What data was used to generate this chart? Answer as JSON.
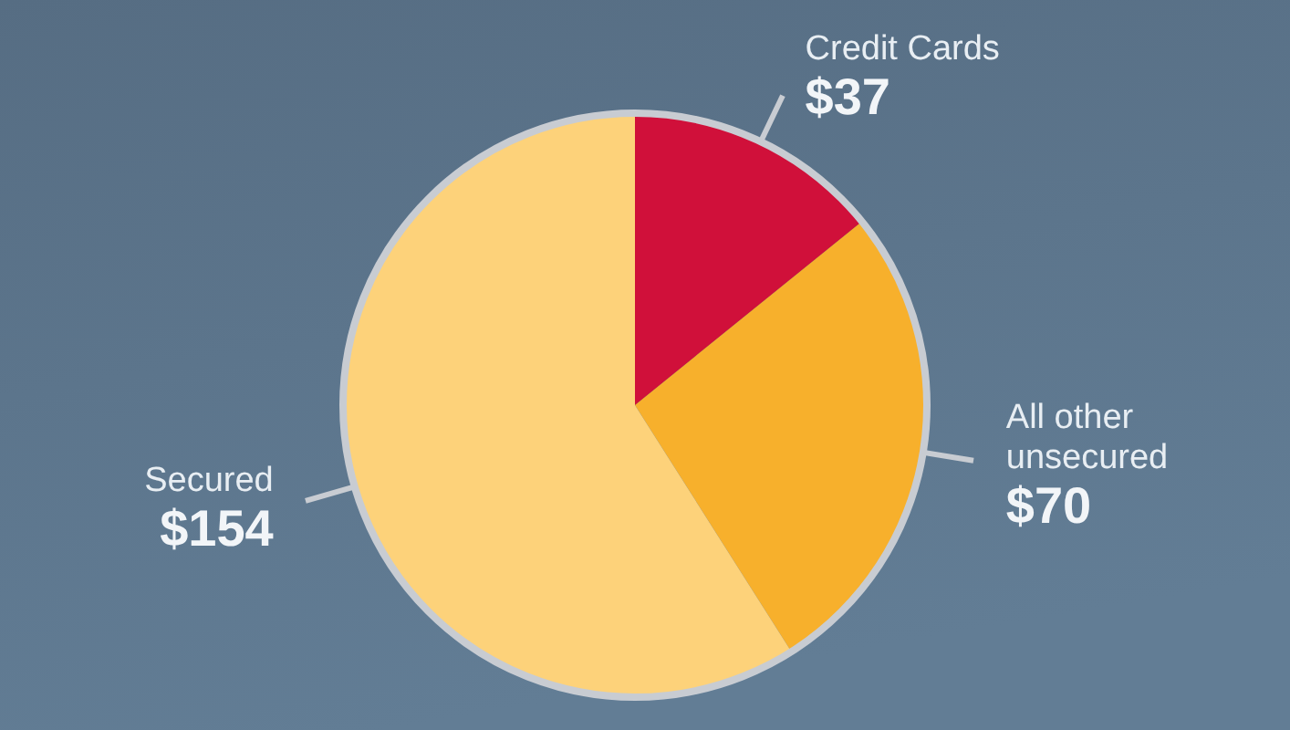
{
  "chart_data": {
    "type": "pie",
    "categories": [
      "Credit Cards",
      "All other unsecured",
      "Secured"
    ],
    "values": [
      37,
      70,
      154
    ],
    "colors": [
      "#d0103a",
      "#f7b02c",
      "#fdd27a"
    ],
    "value_labels": [
      "$37",
      "$70",
      "$154"
    ]
  }
}
